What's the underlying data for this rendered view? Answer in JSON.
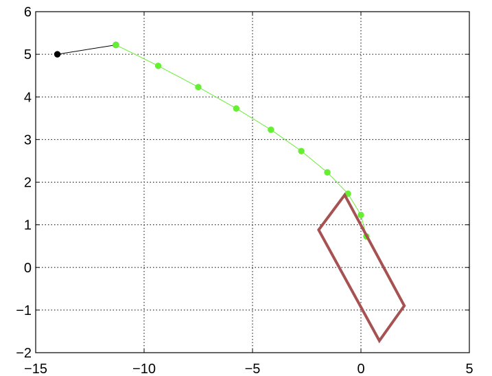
{
  "chart_data": {
    "type": "line",
    "xlim": [
      -15,
      5
    ],
    "ylim": [
      -2,
      6
    ],
    "x_ticks": [
      -15,
      -10,
      -5,
      0,
      5
    ],
    "y_ticks": [
      -2,
      -1,
      0,
      1,
      2,
      3,
      4,
      5,
      6
    ],
    "x_tick_labels": [
      "−15",
      "−10",
      "−5",
      "0",
      "5"
    ],
    "y_tick_labels": [
      "−2",
      "−1",
      "0",
      "1",
      "2",
      "3",
      "4",
      "5",
      "6"
    ],
    "grid": true,
    "series": [
      {
        "kind": "line-markers",
        "color": "#000000",
        "x": [
          -14.0,
          -11.3
        ],
        "y": [
          5.0,
          5.22
        ]
      },
      {
        "kind": "line-markers",
        "color": "#66ee33",
        "x": [
          -11.3,
          -9.35,
          -7.5,
          -5.75,
          -4.15,
          -2.75,
          -1.55,
          -0.6,
          0.0,
          0.25
        ],
        "y": [
          5.22,
          4.73,
          4.23,
          3.73,
          3.23,
          2.73,
          2.23,
          1.73,
          1.23,
          0.73
        ]
      },
      {
        "kind": "polygon",
        "color": "#a65252",
        "x": [
          -0.75,
          2.0,
          0.85,
          -1.95
        ],
        "y": [
          1.7,
          -0.9,
          -1.72,
          0.88
        ]
      }
    ]
  }
}
